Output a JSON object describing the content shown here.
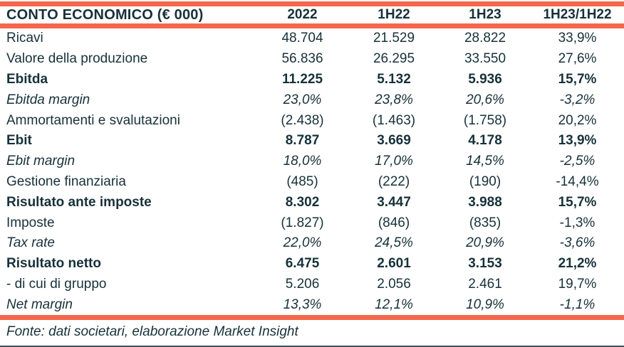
{
  "colors": {
    "accent_bar": "#F4674B",
    "text": "#17313A",
    "bottom_rule": "#3f515a",
    "background": "#ffffff"
  },
  "table": {
    "title": "CONTO ECONOMICO (€ 000)",
    "columns": [
      "2022",
      "1H22",
      "1H23",
      "1H23/1H22"
    ],
    "rows": [
      {
        "label": "Ricavi",
        "style": "regular",
        "values": [
          "48.704",
          "21.529",
          "28.822",
          "33,9%"
        ]
      },
      {
        "label": "Valore della produzione",
        "style": "regular",
        "values": [
          "56.836",
          "26.295",
          "33.550",
          "27,6%"
        ]
      },
      {
        "label": "Ebitda",
        "style": "bold",
        "values": [
          "11.225",
          "5.132",
          "5.936",
          "15,7%"
        ]
      },
      {
        "label": "Ebitda margin",
        "style": "italic",
        "values": [
          "23,0%",
          "23,8%",
          "20,6%",
          "-3,2%"
        ]
      },
      {
        "label": "Ammortamenti e svalutazioni",
        "style": "regular",
        "values": [
          "(2.438)",
          "(1.463)",
          "(1.758)",
          "20,2%"
        ]
      },
      {
        "label": "Ebit",
        "style": "bold",
        "values": [
          "8.787",
          "3.669",
          "4.178",
          "13,9%"
        ]
      },
      {
        "label": "Ebit margin",
        "style": "italic",
        "values": [
          "18,0%",
          "17,0%",
          "14,5%",
          "-2,5%"
        ]
      },
      {
        "label": "Gestione finanziaria",
        "style": "regular",
        "values": [
          "(485)",
          "(222)",
          "(190)",
          "-14,4%"
        ]
      },
      {
        "label": "Risultato ante imposte",
        "style": "bold",
        "values": [
          "8.302",
          "3.447",
          "3.988",
          "15,7%"
        ]
      },
      {
        "label": "Imposte",
        "style": "regular",
        "values": [
          "(1.827)",
          "(846)",
          "(835)",
          "-1,3%"
        ]
      },
      {
        "label": "Tax rate",
        "style": "italic",
        "values": [
          "22,0%",
          "24,5%",
          "20,9%",
          "-3,6%"
        ]
      },
      {
        "label": "Risultato netto",
        "style": "bold",
        "values": [
          "6.475",
          "2.601",
          "3.153",
          "21,2%"
        ]
      },
      {
        "label": "- di cui di gruppo",
        "style": "regular",
        "values": [
          "5.206",
          "2.056",
          "2.461",
          "19,7%"
        ]
      },
      {
        "label": "Net margin",
        "style": "italic",
        "values": [
          "13,3%",
          "12,1%",
          "10,9%",
          "-1,1%"
        ]
      }
    ]
  },
  "footer": {
    "source": "Fonte: dati societari, elaborazione Market Insight"
  }
}
